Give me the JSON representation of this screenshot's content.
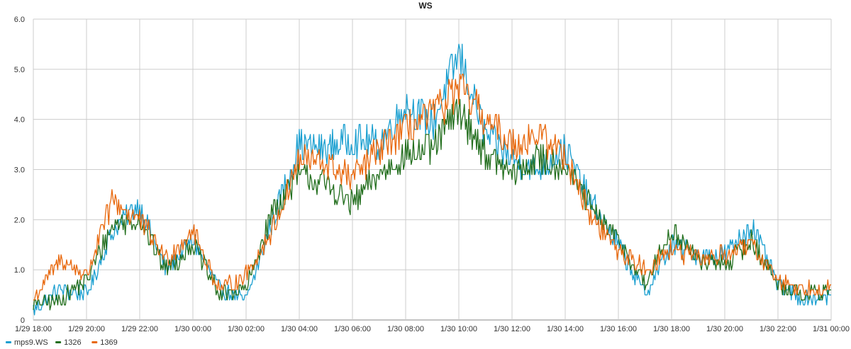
{
  "chart_data": {
    "type": "line",
    "title": "WS",
    "xlabel": "",
    "ylabel": "",
    "x_ticks": [
      "1/29 18:00",
      "1/29 20:00",
      "1/29 22:00",
      "1/30 00:00",
      "1/30 02:00",
      "1/30 04:00",
      "1/30 06:00",
      "1/30 08:00",
      "1/30 10:00",
      "1/30 12:00",
      "1/30 14:00",
      "1/30 16:00",
      "1/30 18:00",
      "1/30 20:00",
      "1/30 22:00",
      "1/31 00:00"
    ],
    "y_ticks": [
      "0",
      "1.0",
      "2.0",
      "3.0",
      "4.0",
      "5.0",
      "6.0"
    ],
    "ylim": [
      0,
      6
    ],
    "grid": true,
    "legend_position": "bottom-left",
    "x": [
      "1/29 18:00",
      "1/29 19:00",
      "1/29 20:00",
      "1/29 21:00",
      "1/29 22:00",
      "1/29 23:00",
      "1/30 00:00",
      "1/30 01:00",
      "1/30 02:00",
      "1/30 03:00",
      "1/30 04:00",
      "1/30 05:00",
      "1/30 06:00",
      "1/30 07:00",
      "1/30 08:00",
      "1/30 09:00",
      "1/30 10:00",
      "1/30 11:00",
      "1/30 12:00",
      "1/30 13:00",
      "1/30 14:00",
      "1/30 15:00",
      "1/30 16:00",
      "1/30 17:00",
      "1/30 18:00",
      "1/30 19:00",
      "1/30 20:00",
      "1/30 21:00",
      "1/30 22:00",
      "1/30 23:00",
      "1/31 00:00"
    ],
    "series": [
      {
        "name": "mps9.WS",
        "color": "#1a9fd0",
        "values": [
          0.2,
          0.6,
          0.5,
          1.8,
          2.3,
          1.0,
          1.6,
          0.6,
          0.4,
          2.0,
          3.5,
          3.4,
          3.6,
          3.5,
          4.3,
          3.9,
          5.3,
          3.7,
          3.2,
          3.0,
          3.4,
          2.3,
          1.5,
          0.5,
          1.5,
          1.3,
          1.3,
          1.9,
          0.7,
          0.4,
          0.5
        ]
      },
      {
        "name": "1326",
        "color": "#236f1e",
        "values": [
          0.3,
          0.4,
          0.8,
          1.9,
          2.0,
          1.0,
          1.5,
          0.5,
          0.6,
          2.2,
          2.9,
          2.7,
          2.3,
          2.9,
          3.3,
          3.4,
          4.2,
          3.3,
          2.9,
          3.2,
          3.1,
          2.2,
          1.6,
          0.7,
          1.8,
          1.2,
          1.1,
          1.6,
          0.7,
          0.5,
          0.6
        ]
      },
      {
        "name": "1369",
        "color": "#e8680d",
        "values": [
          0.4,
          1.2,
          0.9,
          2.4,
          2.0,
          1.2,
          1.8,
          0.6,
          0.9,
          1.8,
          3.2,
          3.1,
          2.8,
          3.4,
          3.8,
          4.1,
          4.6,
          4.0,
          3.5,
          3.7,
          3.3,
          2.0,
          1.4,
          1.0,
          1.4,
          1.2,
          1.3,
          1.5,
          0.8,
          0.6,
          0.7
        ]
      }
    ]
  }
}
